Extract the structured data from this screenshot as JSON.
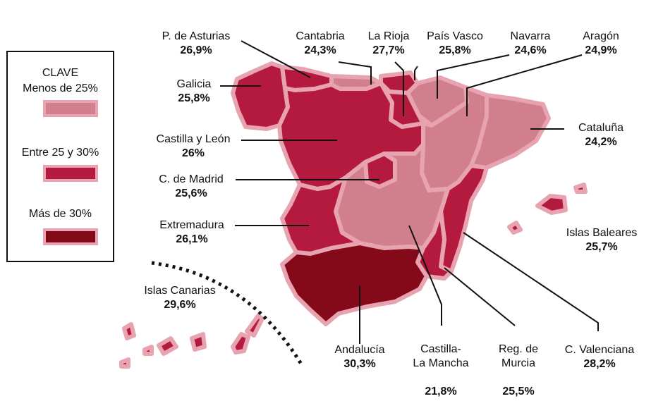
{
  "legend": {
    "title": "CLAVE",
    "items": [
      {
        "label": "Menos de 25%",
        "color": "#d27f8d"
      },
      {
        "label": "Entre 25 y 30%",
        "color": "#b31a3e"
      },
      {
        "label": "Más de 30%",
        "color": "#850a19"
      }
    ]
  },
  "colors": {
    "outline": "#e7a4b0",
    "light": "#d27f8d",
    "mid": "#b31a3e",
    "dark": "#850a19",
    "leader": "#111111"
  },
  "regions": {
    "asturias": {
      "name": "P. de Asturias",
      "value": "26,9%",
      "category": "mid"
    },
    "cantabria": {
      "name": "Cantabria",
      "value": "24,3%",
      "category": "light"
    },
    "rioja": {
      "name": "La Rioja",
      "value": "27,7%",
      "category": "mid"
    },
    "paisvasco": {
      "name": "País Vasco",
      "value": "25,8%",
      "category": "mid"
    },
    "navarra": {
      "name": "Navarra",
      "value": "24,6%",
      "category": "light"
    },
    "aragon": {
      "name": "Aragón",
      "value": "24,9%",
      "category": "light"
    },
    "galicia": {
      "name": "Galicia",
      "value": "25,8%",
      "category": "mid"
    },
    "castillaleon": {
      "name": "Castilla y León",
      "value": "26%",
      "category": "mid"
    },
    "cataluna": {
      "name": "Cataluña",
      "value": "24,2%",
      "category": "light"
    },
    "madrid": {
      "name": "C. de Madrid",
      "value": "25,6%",
      "category": "mid"
    },
    "extremadura": {
      "name": "Extremadura",
      "value": "26,1%",
      "category": "mid"
    },
    "baleares": {
      "name": "Islas Baleares",
      "value": "25,7%",
      "category": "mid"
    },
    "canarias": {
      "name": "Islas Canarias",
      "value": "29,6%",
      "category": "mid"
    },
    "andalucia": {
      "name": "Andalucía",
      "value": "30,3%",
      "category": "dark"
    },
    "castillamancha": {
      "name": "Castilla-\nLa Mancha",
      "value": "21,8%",
      "category": "light"
    },
    "murcia": {
      "name": "Reg. de\nMurcia",
      "value": "25,5%",
      "category": "mid"
    },
    "valenciana": {
      "name": "C. Valenciana",
      "value": "28,2%",
      "category": "mid"
    }
  }
}
